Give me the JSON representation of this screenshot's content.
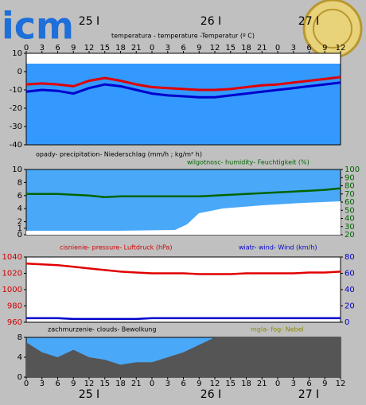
{
  "logo": "icm",
  "chart_data": [
    {
      "type": "line",
      "title": "temperatura - temperature -Temperatur (º C)",
      "day_labels": [
        "25 I",
        "26 I",
        "27 I"
      ],
      "x": [
        0,
        3,
        6,
        9,
        12,
        15,
        18,
        21,
        24,
        27,
        30,
        33,
        36,
        39,
        42,
        45,
        48,
        51,
        54,
        57,
        60
      ],
      "xticks": [
        0,
        3,
        6,
        9,
        12,
        15,
        18,
        21,
        {
          "value": 24,
          "label": "0"
        },
        {
          "value": 27,
          "label": "3"
        },
        {
          "value": 30,
          "label": "6"
        },
        {
          "value": 33,
          "label": "9"
        },
        {
          "value": 36,
          "label": "12"
        },
        {
          "value": 39,
          "label": "15"
        },
        {
          "value": 42,
          "label": "18"
        },
        {
          "value": 45,
          "label": "21"
        },
        {
          "value": 48,
          "label": "0"
        },
        {
          "value": 51,
          "label": "3"
        },
        {
          "value": 54,
          "label": "6"
        },
        {
          "value": 57,
          "label": "9"
        },
        {
          "value": 60,
          "label": "12"
        }
      ],
      "ylim": [
        -40,
        10
      ],
      "yticks": [
        10,
        0,
        -10,
        -20,
        -30,
        -40
      ],
      "series": [
        {
          "color": "#e00000",
          "values": [
            -7,
            -6.5,
            -7,
            -8,
            -5,
            -3.5,
            -5,
            -7,
            -8.5,
            -9,
            -9.5,
            -10,
            -10,
            -9.5,
            -8.5,
            -7.5,
            -7,
            -6,
            -5,
            -4,
            -3
          ]
        },
        {
          "color": "#0000cc",
          "values": [
            -11,
            -10,
            -10.5,
            -12,
            -9,
            -7,
            -8,
            -10,
            -12,
            -13,
            -13.5,
            -14,
            -14,
            -13,
            -12,
            -11,
            -10,
            -9,
            -8,
            -7,
            -6
          ]
        }
      ]
    },
    {
      "type": "line",
      "title": "opady- precipitation- Niederschlag (mm/h ; kg/m² h)",
      "title2": "wilgotnosc- humidity- Feuchtigkeit (%)",
      "x": [
        0,
        3,
        6,
        9,
        12,
        15,
        18,
        21,
        24,
        27,
        30,
        33,
        36,
        39,
        42,
        45,
        48,
        51,
        54,
        57,
        60
      ],
      "ylim": [
        0,
        10
      ],
      "yticks": [
        10,
        8,
        6,
        4,
        2,
        1,
        0
      ],
      "y2lim": [
        20,
        100
      ],
      "y2ticks": [
        100,
        90,
        80,
        70,
        60,
        50,
        40,
        30,
        20
      ],
      "series": [
        {
          "color": "#006400",
          "axis": "y2",
          "values": [
            70,
            70,
            70,
            69,
            68,
            66,
            67,
            67,
            67,
            67,
            67,
            67,
            68,
            69,
            70,
            71,
            72,
            73,
            74,
            75,
            77
          ]
        }
      ]
    },
    {
      "type": "line",
      "title": "cisnienie- pressure- Luftdruck (hPa)",
      "title2": "wiatr- wind- Wind (km/h)",
      "x": [
        0,
        3,
        6,
        9,
        12,
        15,
        18,
        21,
        24,
        27,
        30,
        33,
        36,
        39,
        42,
        45,
        48,
        51,
        54,
        57,
        60
      ],
      "ylim": [
        960,
        1040
      ],
      "yticks": [
        1040,
        1020,
        1000,
        980,
        960
      ],
      "y2lim": [
        0,
        80
      ],
      "y2ticks": [
        80,
        60,
        40,
        20,
        0
      ],
      "series": [
        {
          "color": "#e00000",
          "values": [
            1032,
            1031,
            1030,
            1028,
            1026,
            1024,
            1022,
            1021,
            1020,
            1020,
            1020,
            1019,
            1019,
            1019,
            1020,
            1020,
            1020,
            1020,
            1021,
            1021,
            1022
          ]
        },
        {
          "color": "#0000cc",
          "axis": "y2",
          "values": [
            5,
            5,
            5,
            4,
            4,
            4,
            4,
            4,
            5,
            5,
            5,
            5,
            5,
            5,
            5,
            5,
            5,
            5,
            5,
            5,
            5
          ]
        }
      ]
    },
    {
      "type": "area",
      "title": "zachmurzenie- clouds- Bewolkung",
      "title2": "mgla- fog- Nebel",
      "day_labels": [
        "25 I",
        "26 I",
        "27 I"
      ],
      "x": [
        0,
        3,
        6,
        9,
        12,
        15,
        18,
        21,
        24,
        27,
        30,
        33,
        36,
        39,
        42,
        45,
        48,
        51,
        54,
        57,
        60
      ],
      "xticks": [
        0,
        3,
        6,
        9,
        12,
        15,
        18,
        21,
        {
          "value": 24,
          "label": "0"
        },
        {
          "value": 27,
          "label": "3"
        },
        {
          "value": 30,
          "label": "6"
        },
        {
          "value": 33,
          "label": "9"
        },
        {
          "value": 36,
          "label": "12"
        },
        {
          "value": 39,
          "label": "15"
        },
        {
          "value": 42,
          "label": "18"
        },
        {
          "value": 45,
          "label": "21"
        },
        {
          "value": 48,
          "label": "0"
        },
        {
          "value": 51,
          "label": "3"
        },
        {
          "value": 54,
          "label": "6"
        },
        {
          "value": 57,
          "label": "9"
        },
        {
          "value": 60,
          "label": "12"
        }
      ],
      "ylim": [
        0,
        8
      ],
      "yticks": [
        8,
        4,
        0
      ],
      "series": [
        {
          "color": "#555555",
          "values": [
            7,
            5,
            4,
            5.5,
            4,
            3.5,
            2.5,
            3,
            3,
            4,
            5,
            6.5,
            8,
            8,
            8,
            8,
            8,
            8,
            8,
            8,
            8
          ]
        }
      ]
    }
  ]
}
